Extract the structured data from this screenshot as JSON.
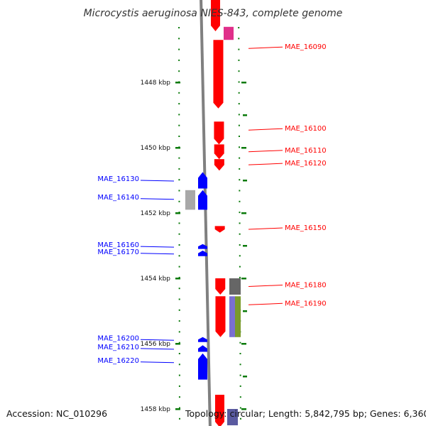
{
  "header": {
    "title": "Microcystis aeruginosa NIES-843, complete genome"
  },
  "footer": {
    "accession": "Accession: NC_010296",
    "topology": "Topology: circular; Length: 5,842,795 bp; Genes: 6,360"
  },
  "colors": {
    "forward": "#ff0000",
    "reverse": "#0000ff",
    "tick": "#0a7a0a",
    "backbone": "#808080"
  },
  "map": {
    "start_kbp": 1446.3,
    "end_kbp": 1458.5,
    "ticks_kbp": [
      {
        "kbp": 1448,
        "label": "1448 kbp"
      },
      {
        "kbp": 1450,
        "label": "1450 kbp"
      },
      {
        "kbp": 1452,
        "label": "1452 kbp"
      },
      {
        "kbp": 1454,
        "label": "1454 kbp"
      },
      {
        "kbp": 1456,
        "label": "1456 kbp"
      },
      {
        "kbp": 1458,
        "label": "1458 kbp"
      }
    ],
    "labeled_genes": [
      {
        "name": "MAE_16090",
        "strand": "+",
        "start_kbp": 1446.7,
        "end_kbp": 1448.8
      },
      {
        "name": "MAE_16100",
        "strand": "+",
        "start_kbp": 1449.2,
        "end_kbp": 1449.9
      },
      {
        "name": "MAE_16110",
        "strand": "+",
        "start_kbp": 1449.9,
        "end_kbp": 1450.35
      },
      {
        "name": "MAE_16120",
        "strand": "+",
        "start_kbp": 1450.35,
        "end_kbp": 1450.7
      },
      {
        "name": "MAE_16130",
        "strand": "-",
        "start_kbp": 1450.75,
        "end_kbp": 1451.25
      },
      {
        "name": "MAE_16140",
        "strand": "-",
        "start_kbp": 1451.3,
        "end_kbp": 1451.9
      },
      {
        "name": "MAE_16150",
        "strand": "+",
        "start_kbp": 1452.4,
        "end_kbp": 1452.6
      },
      {
        "name": "MAE_16160",
        "strand": "-",
        "start_kbp": 1452.95,
        "end_kbp": 1453.1
      },
      {
        "name": "MAE_16170",
        "strand": "-",
        "start_kbp": 1453.15,
        "end_kbp": 1453.32
      },
      {
        "name": "MAE_16180",
        "strand": "+",
        "start_kbp": 1454.0,
        "end_kbp": 1454.5
      },
      {
        "name": "MAE_16190",
        "strand": "+",
        "start_kbp": 1454.55,
        "end_kbp": 1455.8
      },
      {
        "name": "MAE_16200",
        "strand": "-",
        "start_kbp": 1455.8,
        "end_kbp": 1455.95
      },
      {
        "name": "MAE_16210",
        "strand": "-",
        "start_kbp": 1456.05,
        "end_kbp": 1456.25
      },
      {
        "name": "MAE_16220",
        "strand": "-",
        "start_kbp": 1456.3,
        "end_kbp": 1457.1
      }
    ],
    "feature_tracks": [
      {
        "name": "reverse-feature-gray",
        "color": "#a8a8a8",
        "start_kbp": 1451.3,
        "end_kbp": 1451.9
      },
      {
        "name": "forward-feature-dark-gray",
        "color": "#666666",
        "start_kbp": 1454.0,
        "end_kbp": 1454.5
      },
      {
        "name": "forward-feature-purple",
        "color": "#7a6fd0",
        "start_kbp": 1454.55,
        "end_kbp": 1455.8
      },
      {
        "name": "forward-feature-olive",
        "color": "#7a9a2a",
        "start_kbp": 1454.55,
        "end_kbp": 1455.8
      },
      {
        "name": "forward-feature-magenta-top",
        "color": "#e0308a",
        "start_kbp": 1446.3,
        "end_kbp": 1446.7
      },
      {
        "name": "forward-feature-slate-bottom",
        "color": "#5a5aa0",
        "start_kbp": 1458.0,
        "end_kbp": 1458.5
      }
    ]
  }
}
